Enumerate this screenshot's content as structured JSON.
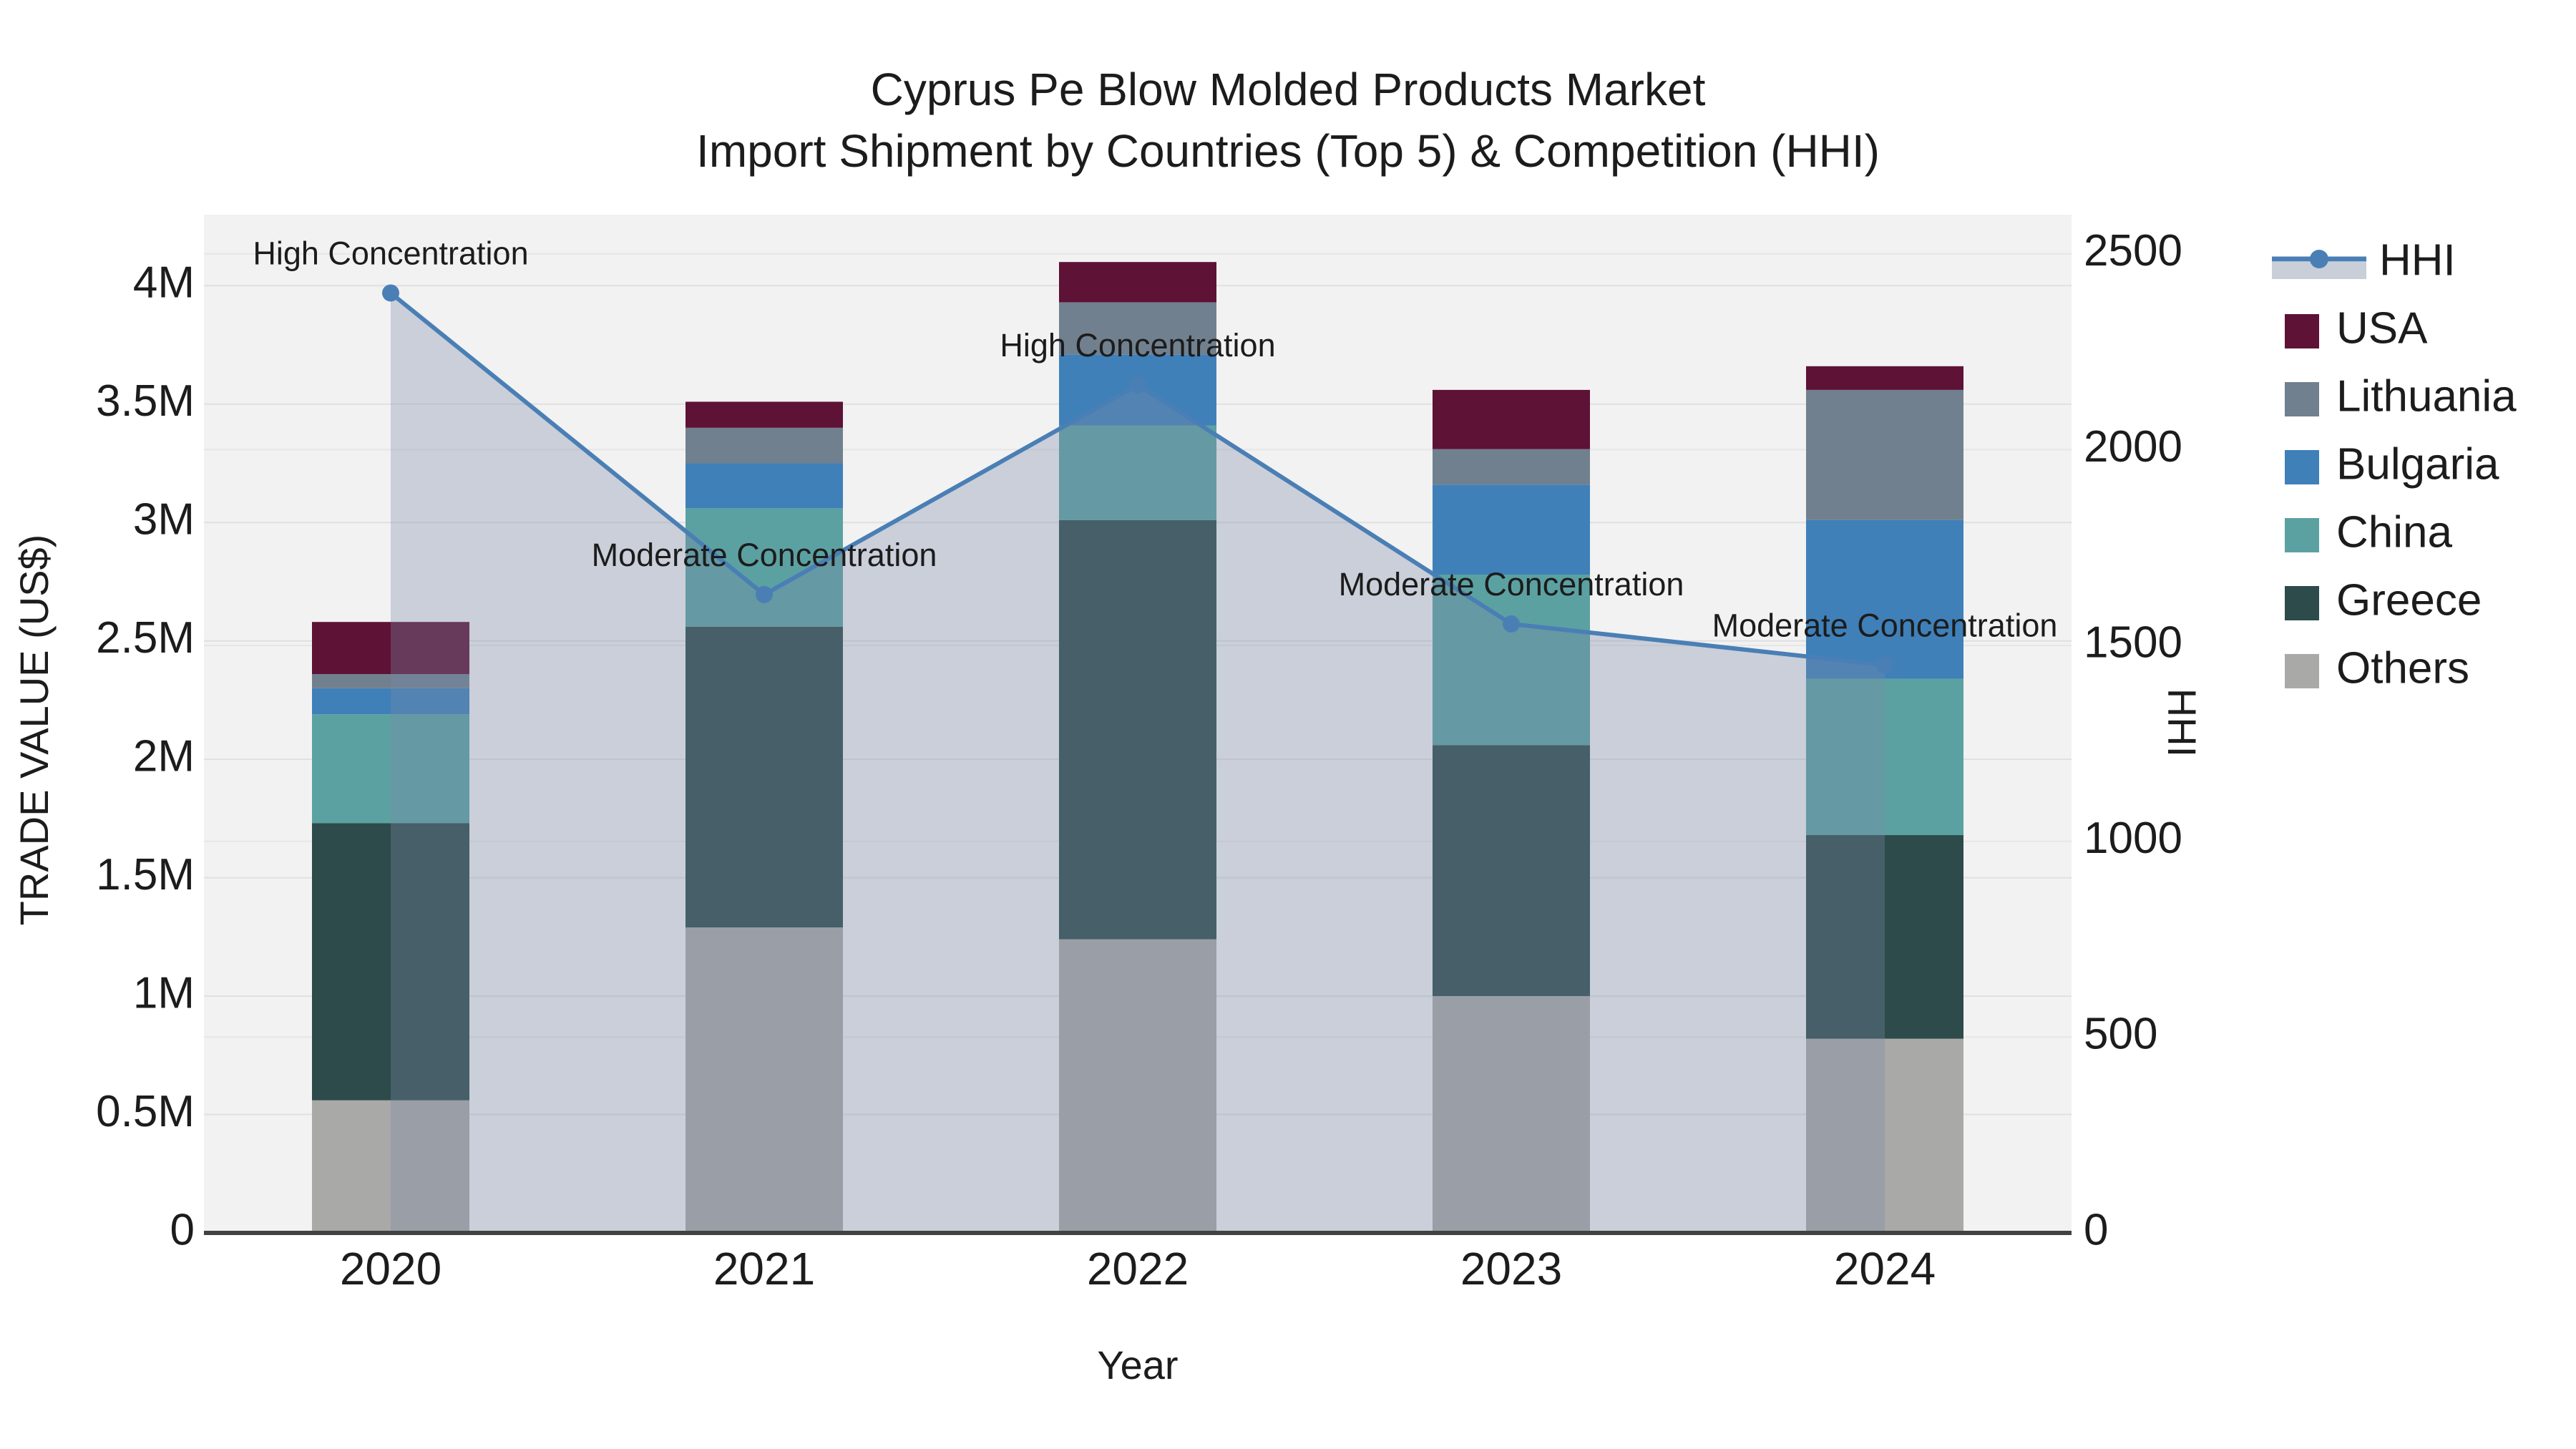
{
  "title": {
    "line1": "Cyprus Pe Blow Molded Products Market",
    "line2": "Import Shipment by Countries (Top 5) & Competition (HHI)"
  },
  "axes": {
    "x_title": "Year",
    "y_left_title": "TRADE VALUE (US$)",
    "y_right_title": "HHI",
    "y_left_ticks": [
      {
        "label": "0",
        "value": 0
      },
      {
        "label": "0.5M",
        "value": 0.5
      },
      {
        "label": "1M",
        "value": 1
      },
      {
        "label": "1.5M",
        "value": 1.5
      },
      {
        "label": "2M",
        "value": 2
      },
      {
        "label": "2.5M",
        "value": 2.5
      },
      {
        "label": "3M",
        "value": 3
      },
      {
        "label": "3.5M",
        "value": 3.5
      },
      {
        "label": "4M",
        "value": 4
      }
    ],
    "y_right_ticks": [
      {
        "label": "0",
        "value": 0
      },
      {
        "label": "500",
        "value": 500
      },
      {
        "label": "1000",
        "value": 1000
      },
      {
        "label": "1500",
        "value": 1500
      },
      {
        "label": "2000",
        "value": 2000
      },
      {
        "label": "2500",
        "value": 2500
      }
    ]
  },
  "chart_data": {
    "type": "stacked-bar+line",
    "categories": [
      "2020",
      "2021",
      "2022",
      "2023",
      "2024"
    ],
    "bar_value_unit": "million US$",
    "series": [
      {
        "name": "Others",
        "color": "#a9a9a7",
        "values": [
          0.56,
          1.29,
          1.24,
          1.0,
          0.82
        ]
      },
      {
        "name": "Greece",
        "color": "#2d4b4a",
        "values": [
          1.17,
          1.27,
          1.77,
          1.06,
          0.86
        ]
      },
      {
        "name": "China",
        "color": "#5ca1a2",
        "values": [
          0.46,
          0.5,
          0.4,
          0.72,
          0.66
        ]
      },
      {
        "name": "Bulgaria",
        "color": "#3f80b9",
        "values": [
          0.11,
          0.19,
          0.3,
          0.38,
          0.67
        ]
      },
      {
        "name": "Lithuania",
        "color": "#71808f",
        "values": [
          0.06,
          0.15,
          0.22,
          0.15,
          0.55
        ]
      },
      {
        "name": "USA",
        "color": "#5e1236",
        "values": [
          0.22,
          0.11,
          0.17,
          0.25,
          0.1
        ]
      }
    ],
    "bar_totals": [
      2.58,
      3.51,
      4.1,
      3.56,
      3.66
    ],
    "line_series": {
      "name": "HHI",
      "color": "#4a7fb5",
      "area_fill": "rgba(120,138,168,0.33)",
      "values": [
        2400,
        1630,
        2165,
        1555,
        1450
      ]
    },
    "annotations": [
      {
        "category": "2020",
        "text": "High Concentration"
      },
      {
        "category": "2021",
        "text": "Moderate Concentration"
      },
      {
        "category": "2022",
        "text": "High Concentration"
      },
      {
        "category": "2023",
        "text": "Moderate Concentration"
      },
      {
        "category": "2024",
        "text": "Moderate Concentration"
      }
    ],
    "ylim_left": [
      0,
      4.3
    ],
    "ylim_right": [
      0,
      2600
    ],
    "grid": true,
    "legend_position": "right",
    "legend": [
      {
        "label": "HHI",
        "type": "line",
        "color": "#4a7fb5",
        "band_color": "#c9cfd9"
      },
      {
        "label": "USA",
        "type": "swatch",
        "color": "#5e1236"
      },
      {
        "label": "Lithuania",
        "type": "swatch",
        "color": "#71808f"
      },
      {
        "label": "Bulgaria",
        "type": "swatch",
        "color": "#3f80b9"
      },
      {
        "label": "China",
        "type": "swatch",
        "color": "#5ca1a2"
      },
      {
        "label": "Greece",
        "type": "swatch",
        "color": "#2d4b4a"
      },
      {
        "label": "Others",
        "type": "swatch",
        "color": "#a9a9a7"
      }
    ]
  }
}
